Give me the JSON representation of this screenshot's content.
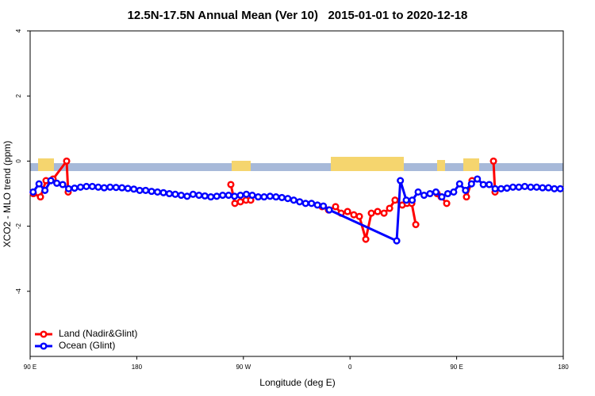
{
  "chart_data": {
    "type": "line",
    "title": "12.5N-17.5N Annual Mean (Ver 10)   2015-01-01 to 2020-12-18",
    "x_label": "Longitude (deg E)",
    "y_label": "XCO2 - MLO trend (ppm)",
    "xlim": [
      90,
      540
    ],
    "ylim": [
      -6,
      4
    ],
    "xticks": [
      {
        "value": 90,
        "label": "90 E"
      },
      180,
      {
        "value": 270,
        "label": "90 W"
      },
      {
        "value": 360,
        "label": "0"
      },
      {
        "value": 450,
        "label": "90 E"
      },
      {
        "value": 540,
        "label": "180"
      }
    ],
    "yticks": [
      4,
      2,
      0,
      -2,
      -4
    ],
    "legend": "bottom-left",
    "series": [
      {
        "name": "Land (Nadir&Glint)",
        "color": "#ff0000",
        "x": [
          92.7,
          98.7,
          103.4,
          109.4,
          120.8,
          122.1,
          190,
          259.4,
          262.8,
          267.5,
          272.2,
          276.2,
          306,
          336.4,
          341.8,
          347.8,
          352.5,
          357.9,
          363.2,
          367.9,
          373.3,
          378,
          383.3,
          388.7,
          393.4,
          398,
          404.1,
          408.1,
          412.1,
          415.5,
          425,
          433.5,
          436.9,
          441.6,
          450,
          458.3,
          463,
          472,
          481.1,
          482.4
        ],
        "values": [
          -1.0,
          -1.1,
          -0.6,
          -0.55,
          0.0,
          -0.95,
          null,
          -0.72,
          -1.3,
          -1.25,
          -1.2,
          -1.2,
          null,
          -1.4,
          -1.5,
          -1.4,
          -1.6,
          -1.55,
          -1.65,
          -1.7,
          -2.4,
          -1.6,
          -1.55,
          -1.6,
          -1.45,
          -1.2,
          -1.35,
          -1.3,
          -1.3,
          -1.95,
          null,
          -1.0,
          -1.1,
          -1.3,
          null,
          -1.1,
          -0.6,
          null,
          0.0,
          -0.95
        ]
      },
      {
        "name": "Ocean (Glint)",
        "color": "#0000ff",
        "x": [
          92.5,
          97.5,
          102.5,
          107.5,
          112.5,
          117.5,
          122.5,
          127.5,
          132.5,
          137.5,
          142.5,
          147.5,
          152.5,
          157.5,
          162.5,
          167.5,
          172.5,
          177.5,
          182.5,
          187.5,
          192.5,
          197.5,
          202.5,
          207.5,
          212.5,
          217.5,
          222.5,
          227.5,
          232.5,
          237.5,
          242.5,
          247.5,
          252.5,
          257.5,
          262.5,
          267.5,
          272.5,
          277.5,
          282.5,
          287.5,
          292.5,
          297.5,
          302.5,
          307.5,
          312.5,
          317.5,
          322.5,
          327.5,
          332.5,
          337.5,
          342.5,
          399.4,
          402.5,
          407.5,
          412.5,
          417.5,
          422.5,
          427.5,
          432.5,
          437.5,
          442.5,
          447.5,
          452.5,
          457.5,
          462.5,
          467.5,
          472.5,
          477.5,
          482.5,
          487.5,
          492.5,
          497.5,
          502.5,
          507.5,
          512.5,
          517.5,
          522.5,
          527.5,
          532.5,
          537.5
        ],
        "values": [
          -0.95,
          -0.7,
          -0.9,
          -0.6,
          -0.68,
          -0.72,
          -0.85,
          -0.83,
          -0.8,
          -0.78,
          -0.78,
          -0.8,
          -0.82,
          -0.8,
          -0.81,
          -0.82,
          -0.84,
          -0.86,
          -0.9,
          -0.9,
          -0.93,
          -0.95,
          -0.97,
          -1.0,
          -1.02,
          -1.05,
          -1.08,
          -1.02,
          -1.05,
          -1.07,
          -1.1,
          -1.08,
          -1.05,
          -1.05,
          -1.08,
          -1.05,
          -1.02,
          -1.05,
          -1.1,
          -1.1,
          -1.08,
          -1.1,
          -1.12,
          -1.15,
          -1.2,
          -1.25,
          -1.3,
          -1.3,
          -1.35,
          -1.38,
          -1.5,
          -2.45,
          -0.6,
          -1.2,
          -1.2,
          -0.95,
          -1.05,
          -1.0,
          -0.95,
          -1.1,
          -1.0,
          -0.95,
          -0.7,
          -0.9,
          -0.7,
          -0.55,
          -0.72,
          -0.72,
          -0.85,
          -0.85,
          -0.83,
          -0.8,
          -0.8,
          -0.78,
          -0.8,
          -0.8,
          -0.82,
          -0.82,
          -0.85,
          -0.85
        ]
      }
    ]
  }
}
